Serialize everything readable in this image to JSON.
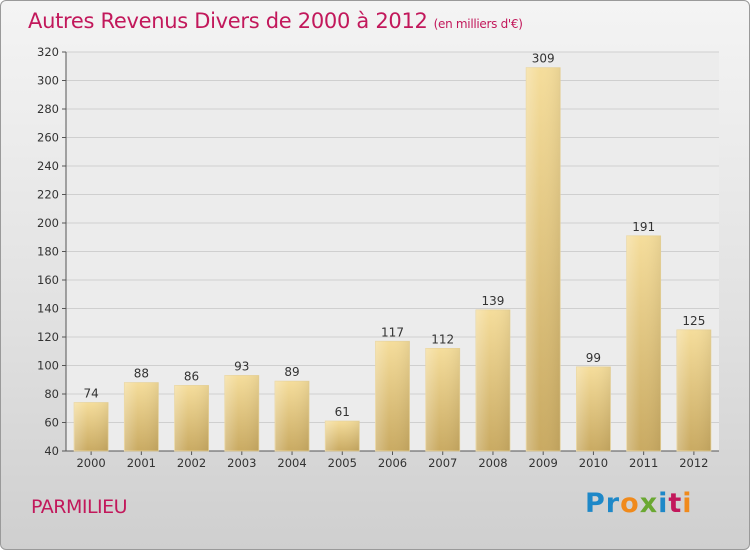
{
  "header": {
    "title": "Autres Revenus Divers de 2000 à 2012",
    "unit": "(en milliers d'€)"
  },
  "footer": {
    "place": "PARMILIEU",
    "logo_letters": [
      "P",
      "r",
      "o",
      "x",
      "i",
      "t",
      "i"
    ]
  },
  "colors": {
    "title": "#c2185b",
    "bar_top": "#f5dd9b",
    "bar_bottom": "#c9aa62",
    "logo": [
      "#1e88c8",
      "#1e88c8",
      "#f08a1c",
      "#6aa832",
      "#1e88c8",
      "#c2185b",
      "#f08a1c"
    ]
  },
  "chart_data": {
    "type": "bar",
    "categories": [
      "2000",
      "2001",
      "2002",
      "2003",
      "2004",
      "2005",
      "2006",
      "2007",
      "2008",
      "2009",
      "2010",
      "2011",
      "2012"
    ],
    "values": [
      74,
      88,
      86,
      93,
      89,
      61,
      117,
      112,
      139,
      309,
      99,
      191,
      125
    ],
    "ylim": [
      40,
      320
    ],
    "yticks": [
      40,
      60,
      80,
      100,
      120,
      140,
      160,
      180,
      200,
      220,
      240,
      260,
      280,
      300,
      320
    ],
    "grid": true
  }
}
